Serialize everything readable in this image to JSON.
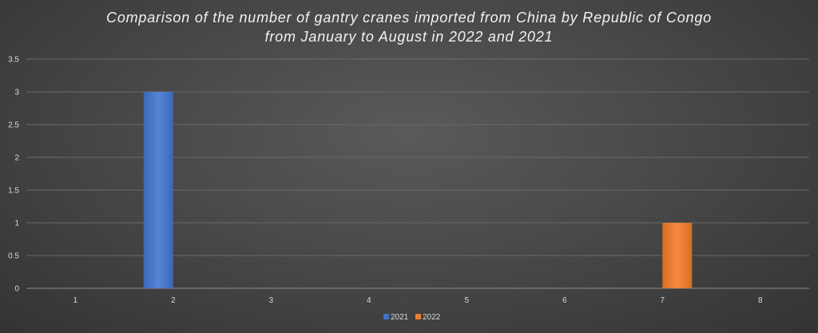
{
  "chart_data": {
    "type": "bar",
    "title_lines": [
      "Comparison of the number of gantry cranes imported from China by Republic of Congo",
      "from January to August in 2022 and 2021"
    ],
    "categories": [
      "1",
      "2",
      "3",
      "4",
      "5",
      "6",
      "7",
      "8"
    ],
    "series": [
      {
        "name": "2021",
        "color": "#4472c4",
        "values": [
          0,
          3,
          0,
          0,
          0,
          0,
          0,
          0
        ]
      },
      {
        "name": "2022",
        "color": "#ed7d31",
        "values": [
          0,
          0,
          0,
          0,
          0,
          0,
          1,
          0
        ]
      }
    ],
    "ylim": [
      0,
      3.5
    ],
    "yticks": [
      "0",
      "0.5",
      "1",
      "1.5",
      "2",
      "2.5",
      "3",
      "3.5"
    ],
    "grid": true,
    "legend_position": "bottom"
  }
}
